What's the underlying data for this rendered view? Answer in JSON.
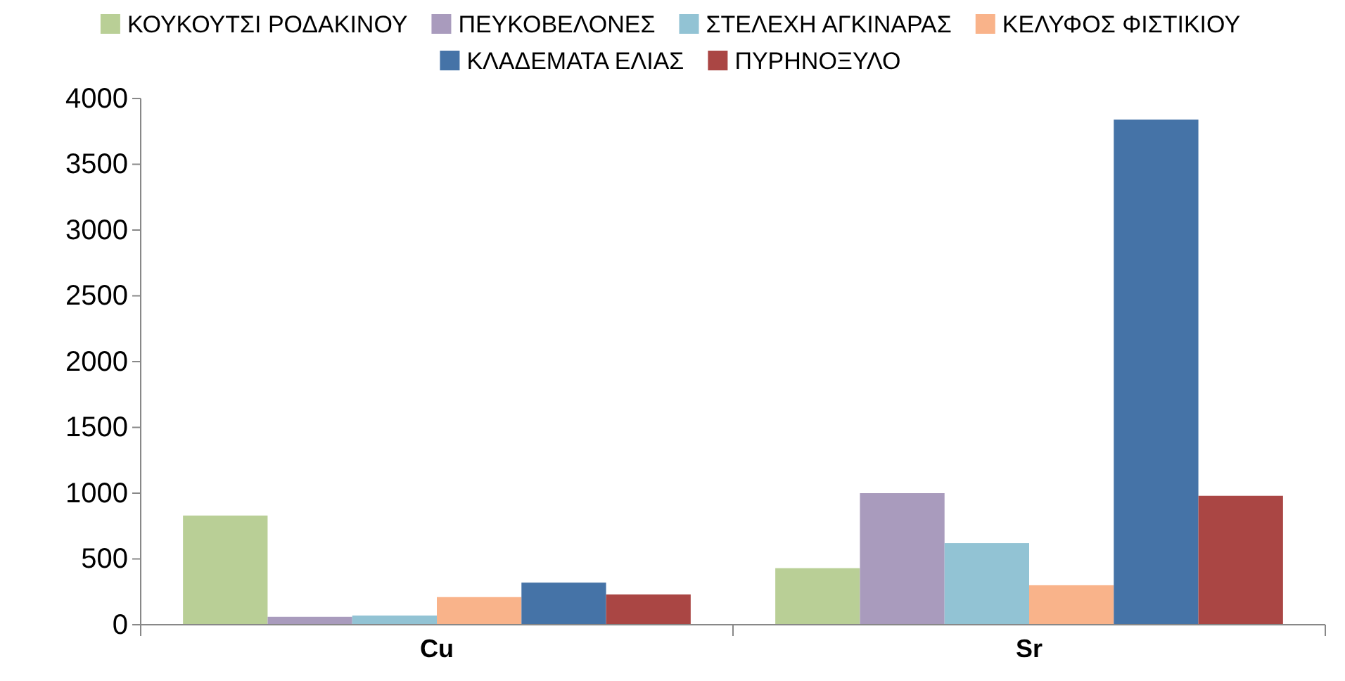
{
  "chart_data": {
    "type": "bar",
    "categories": [
      "Cu",
      "Sr"
    ],
    "series": [
      {
        "name": "ΚΟΥΚΟΥΤΣΙ ΡΟΔΑΚΙΝΟΥ",
        "color": "#b9cf96",
        "values": [
          830,
          430
        ]
      },
      {
        "name": "ΠΕΥΚΟΒΕΛΟΝΕΣ",
        "color": "#a99bbd",
        "values": [
          60,
          1000
        ]
      },
      {
        "name": "ΣΤΕΛΕΧΗ ΑΓΚΙΝΑΡΑΣ",
        "color": "#92c3d4",
        "values": [
          70,
          620
        ]
      },
      {
        "name": "ΚΕΛΥΦΟΣ ΦΙΣΤΙΚΙΟΥ",
        "color": "#f9b38a",
        "values": [
          210,
          300
        ]
      },
      {
        "name": "ΚΛΑΔΕΜΑΤΑ ΕΛΙΑΣ",
        "color": "#4573a7",
        "values": [
          320,
          3840
        ]
      },
      {
        "name": "ΠΥΡΗΝΟΞΥΛΟ",
        "color": "#aa4644",
        "values": [
          230,
          980
        ]
      }
    ],
    "ylim": [
      0,
      4000
    ],
    "yticks": [
      0,
      500,
      1000,
      1500,
      2000,
      2500,
      3000,
      3500,
      4000
    ],
    "grid": false,
    "legend": "top"
  }
}
